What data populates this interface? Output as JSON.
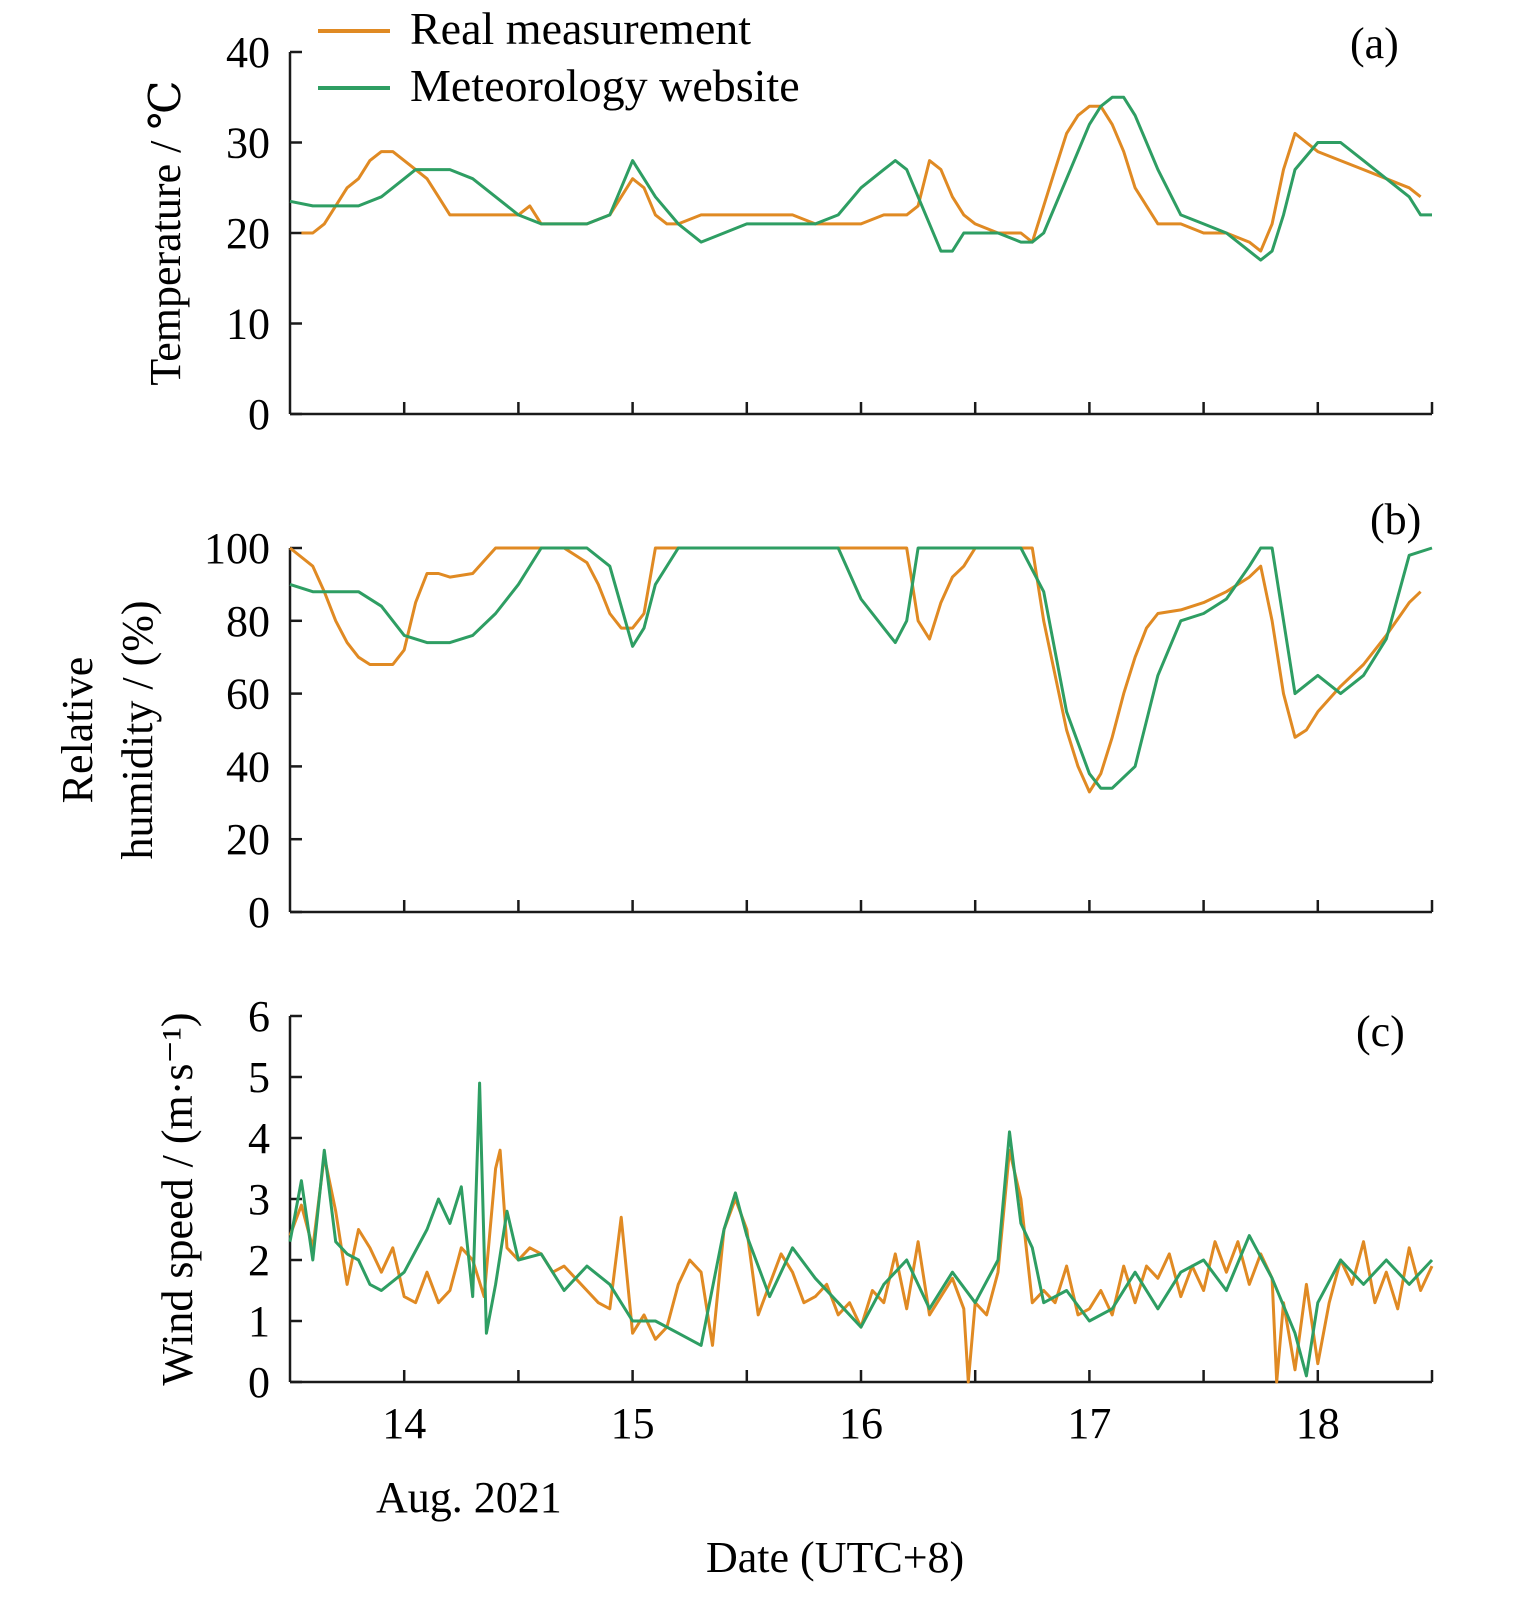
{
  "legend": {
    "real": "Real measurement",
    "website": "Meteorology website"
  },
  "colors": {
    "real": "#e08a23",
    "website": "#2e9e63",
    "axis": "#1a1a1a"
  },
  "x_axis": {
    "tick_values": [
      14,
      15,
      16,
      17,
      18
    ],
    "tick_labels": [
      "14",
      "15",
      "16",
      "17",
      "18"
    ],
    "sub_label": "Aug. 2021",
    "label": "Date (UTC+8)",
    "range": [
      13.5,
      18.5
    ]
  },
  "chart_data": [
    {
      "type": "line",
      "panel": "(a)",
      "ylabel": "Temperature / ℃",
      "ylim": [
        0,
        40
      ],
      "yticks": [
        0,
        10,
        20,
        30,
        40
      ],
      "series": [
        {
          "name": "Real measurement",
          "x": [
            13.55,
            13.6,
            13.65,
            13.7,
            13.75,
            13.8,
            13.85,
            13.9,
            13.95,
            14.0,
            14.05,
            14.1,
            14.15,
            14.2,
            14.3,
            14.4,
            14.5,
            14.55,
            14.6,
            14.7,
            14.8,
            14.9,
            14.95,
            15.0,
            15.05,
            15.1,
            15.15,
            15.2,
            15.3,
            15.4,
            15.5,
            15.6,
            15.7,
            15.8,
            15.9,
            16.0,
            16.1,
            16.2,
            16.25,
            16.3,
            16.35,
            16.4,
            16.45,
            16.5,
            16.6,
            16.7,
            16.75,
            16.8,
            16.85,
            16.9,
            16.95,
            17.0,
            17.05,
            17.1,
            17.15,
            17.2,
            17.25,
            17.3,
            17.4,
            17.5,
            17.6,
            17.7,
            17.75,
            17.8,
            17.85,
            17.9,
            17.95,
            18.0,
            18.1,
            18.2,
            18.3,
            18.4,
            18.45
          ],
          "y": [
            20,
            20,
            21,
            23,
            25,
            26,
            28,
            29,
            29,
            28,
            27,
            26,
            24,
            22,
            22,
            22,
            22,
            23,
            21,
            21,
            21,
            22,
            24,
            26,
            25,
            22,
            21,
            21,
            22,
            22,
            22,
            22,
            22,
            21,
            21,
            21,
            22,
            22,
            23,
            28,
            27,
            24,
            22,
            21,
            20,
            20,
            19,
            23,
            27,
            31,
            33,
            34,
            34,
            32,
            29,
            25,
            23,
            21,
            21,
            20,
            20,
            19,
            18,
            21,
            27,
            31,
            30,
            29,
            28,
            27,
            26,
            25,
            24
          ]
        },
        {
          "name": "Meteorology website",
          "x": [
            13.5,
            13.6,
            13.7,
            13.8,
            13.9,
            14.0,
            14.05,
            14.1,
            14.2,
            14.3,
            14.4,
            14.5,
            14.6,
            14.7,
            14.8,
            14.9,
            14.95,
            15.0,
            15.05,
            15.1,
            15.2,
            15.3,
            15.4,
            15.5,
            15.6,
            15.7,
            15.8,
            15.9,
            16.0,
            16.1,
            16.15,
            16.2,
            16.25,
            16.3,
            16.35,
            16.4,
            16.45,
            16.5,
            16.6,
            16.7,
            16.75,
            16.8,
            16.9,
            17.0,
            17.05,
            17.1,
            17.15,
            17.2,
            17.3,
            17.4,
            17.5,
            17.6,
            17.65,
            17.7,
            17.75,
            17.8,
            17.85,
            17.9,
            18.0,
            18.1,
            18.2,
            18.3,
            18.4,
            18.45,
            18.5
          ],
          "y": [
            23.5,
            23,
            23,
            23,
            24,
            26,
            27,
            27,
            27,
            26,
            24,
            22,
            21,
            21,
            21,
            22,
            25,
            28,
            26,
            24,
            21,
            19,
            20,
            21,
            21,
            21,
            21,
            22,
            25,
            27,
            28,
            27,
            24,
            21,
            18,
            18,
            20,
            20,
            20,
            19,
            19,
            20,
            26,
            32,
            34,
            35,
            35,
            33,
            27,
            22,
            21,
            20,
            19,
            18,
            17,
            18,
            22,
            27,
            30,
            30,
            28,
            26,
            24,
            22,
            22
          ]
        }
      ]
    },
    {
      "type": "line",
      "panel": "(b)",
      "ylabel": "Relative humidity / (%)",
      "ylabel_lines": [
        "Relative",
        "humidity / (%)"
      ],
      "ylim": [
        0,
        100
      ],
      "yticks": [
        0,
        20,
        40,
        60,
        80,
        100
      ],
      "series": [
        {
          "name": "Real measurement",
          "x": [
            13.5,
            13.6,
            13.65,
            13.7,
            13.75,
            13.8,
            13.85,
            13.9,
            13.95,
            14.0,
            14.05,
            14.1,
            14.15,
            14.2,
            14.3,
            14.4,
            14.45,
            14.5,
            14.6,
            14.7,
            14.8,
            14.85,
            14.9,
            14.95,
            15.0,
            15.05,
            15.1,
            15.2,
            15.3,
            15.5,
            15.7,
            15.9,
            16.1,
            16.2,
            16.25,
            16.3,
            16.35,
            16.4,
            16.45,
            16.5,
            16.6,
            16.7,
            16.75,
            16.8,
            16.9,
            16.95,
            17.0,
            17.05,
            17.1,
            17.15,
            17.2,
            17.25,
            17.3,
            17.4,
            17.5,
            17.6,
            17.7,
            17.75,
            17.8,
            17.85,
            17.9,
            17.95,
            18.0,
            18.1,
            18.2,
            18.3,
            18.4,
            18.45
          ],
          "y": [
            100,
            95,
            88,
            80,
            74,
            70,
            68,
            68,
            68,
            72,
            85,
            93,
            93,
            92,
            93,
            100,
            100,
            100,
            100,
            100,
            96,
            90,
            82,
            78,
            78,
            82,
            100,
            100,
            100,
            100,
            100,
            100,
            100,
            100,
            80,
            75,
            85,
            92,
            95,
            100,
            100,
            100,
            100,
            80,
            50,
            40,
            33,
            38,
            48,
            60,
            70,
            78,
            82,
            83,
            85,
            88,
            92,
            95,
            80,
            60,
            48,
            50,
            55,
            62,
            68,
            76,
            85,
            88
          ]
        },
        {
          "name": "Meteorology website",
          "x": [
            13.5,
            13.6,
            13.7,
            13.8,
            13.9,
            14.0,
            14.1,
            14.2,
            14.3,
            14.4,
            14.5,
            14.6,
            14.7,
            14.8,
            14.9,
            14.95,
            15.0,
            15.05,
            15.1,
            15.2,
            15.3,
            15.5,
            15.7,
            15.9,
            16.0,
            16.1,
            16.15,
            16.2,
            16.25,
            16.3,
            16.5,
            16.7,
            16.8,
            16.9,
            17.0,
            17.05,
            17.1,
            17.2,
            17.3,
            17.4,
            17.5,
            17.6,
            17.7,
            17.75,
            17.8,
            17.9,
            18.0,
            18.1,
            18.2,
            18.3,
            18.4,
            18.5
          ],
          "y": [
            90,
            88,
            88,
            88,
            84,
            76,
            74,
            74,
            76,
            82,
            90,
            100,
            100,
            100,
            95,
            84,
            73,
            78,
            90,
            100,
            100,
            100,
            100,
            100,
            86,
            78,
            74,
            80,
            100,
            100,
            100,
            100,
            88,
            55,
            38,
            34,
            34,
            40,
            65,
            80,
            82,
            86,
            95,
            100,
            100,
            60,
            65,
            60,
            65,
            75,
            98,
            100
          ]
        }
      ]
    },
    {
      "type": "line",
      "panel": "(c)",
      "ylabel": "Wind speed / (m·s⁻¹)",
      "ylim": [
        0,
        6
      ],
      "yticks": [
        0,
        1,
        2,
        3,
        4,
        5,
        6
      ],
      "series": [
        {
          "name": "Real measurement",
          "x": [
            13.5,
            13.55,
            13.6,
            13.65,
            13.7,
            13.75,
            13.8,
            13.85,
            13.9,
            13.95,
            14.0,
            14.05,
            14.1,
            14.15,
            14.2,
            14.25,
            14.3,
            14.35,
            14.4,
            14.42,
            14.45,
            14.5,
            14.55,
            14.6,
            14.65,
            14.7,
            14.75,
            14.8,
            14.85,
            14.9,
            14.95,
            15.0,
            15.05,
            15.1,
            15.15,
            15.2,
            15.25,
            15.3,
            15.35,
            15.4,
            15.45,
            15.5,
            15.55,
            15.6,
            15.65,
            15.7,
            15.75,
            15.8,
            15.85,
            15.9,
            15.95,
            16.0,
            16.05,
            16.1,
            16.15,
            16.2,
            16.25,
            16.3,
            16.35,
            16.4,
            16.45,
            16.47,
            16.5,
            16.55,
            16.6,
            16.65,
            16.7,
            16.75,
            16.8,
            16.85,
            16.9,
            16.95,
            17.0,
            17.05,
            17.1,
            17.15,
            17.2,
            17.25,
            17.3,
            17.35,
            17.4,
            17.45,
            17.5,
            17.55,
            17.6,
            17.65,
            17.7,
            17.75,
            17.8,
            17.82,
            17.85,
            17.9,
            17.95,
            18.0,
            18.05,
            18.1,
            18.15,
            18.2,
            18.25,
            18.3,
            18.35,
            18.4,
            18.45,
            18.5
          ],
          "y": [
            2.4,
            2.9,
            2.2,
            3.7,
            2.8,
            1.6,
            2.5,
            2.2,
            1.8,
            2.2,
            1.4,
            1.3,
            1.8,
            1.3,
            1.5,
            2.2,
            2.0,
            1.4,
            3.5,
            3.8,
            2.2,
            2.0,
            2.2,
            2.1,
            1.8,
            1.9,
            1.7,
            1.5,
            1.3,
            1.2,
            2.7,
            0.8,
            1.1,
            0.7,
            0.9,
            1.6,
            2.0,
            1.8,
            0.6,
            2.5,
            3.0,
            2.5,
            1.1,
            1.6,
            2.1,
            1.8,
            1.3,
            1.4,
            1.6,
            1.1,
            1.3,
            0.9,
            1.5,
            1.3,
            2.1,
            1.2,
            2.3,
            1.1,
            1.4,
            1.7,
            1.2,
            0.0,
            1.3,
            1.1,
            1.8,
            3.8,
            3.0,
            1.3,
            1.5,
            1.3,
            1.9,
            1.1,
            1.2,
            1.5,
            1.1,
            1.9,
            1.3,
            1.9,
            1.7,
            2.1,
            1.4,
            1.9,
            1.5,
            2.3,
            1.8,
            2.3,
            1.6,
            2.1,
            1.7,
            0.0,
            1.3,
            0.2,
            1.6,
            0.3,
            1.3,
            2.0,
            1.6,
            2.3,
            1.3,
            1.8,
            1.2,
            2.2,
            1.5,
            1.9
          ]
        },
        {
          "name": "Meteorology website",
          "x": [
            13.5,
            13.55,
            13.6,
            13.65,
            13.7,
            13.75,
            13.8,
            13.85,
            13.9,
            14.0,
            14.1,
            14.15,
            14.2,
            14.25,
            14.3,
            14.33,
            14.36,
            14.4,
            14.45,
            14.5,
            14.6,
            14.7,
            14.8,
            14.9,
            15.0,
            15.1,
            15.2,
            15.3,
            15.4,
            15.45,
            15.5,
            15.6,
            15.7,
            15.8,
            15.9,
            16.0,
            16.1,
            16.2,
            16.3,
            16.4,
            16.5,
            16.6,
            16.65,
            16.7,
            16.75,
            16.8,
            16.9,
            17.0,
            17.1,
            17.2,
            17.3,
            17.4,
            17.5,
            17.6,
            17.7,
            17.8,
            17.9,
            17.95,
            18.0,
            18.1,
            18.2,
            18.3,
            18.4,
            18.5
          ],
          "y": [
            2.3,
            3.3,
            2.0,
            3.8,
            2.3,
            2.1,
            2.0,
            1.6,
            1.5,
            1.8,
            2.5,
            3.0,
            2.6,
            3.2,
            1.4,
            4.9,
            0.8,
            1.6,
            2.8,
            2.0,
            2.1,
            1.5,
            1.9,
            1.6,
            1.0,
            1.0,
            0.8,
            0.6,
            2.5,
            3.1,
            2.4,
            1.4,
            2.2,
            1.7,
            1.3,
            0.9,
            1.6,
            2.0,
            1.2,
            1.8,
            1.3,
            2.0,
            4.1,
            2.6,
            2.2,
            1.3,
            1.5,
            1.0,
            1.2,
            1.8,
            1.2,
            1.8,
            2.0,
            1.5,
            2.4,
            1.7,
            0.8,
            0.1,
            1.3,
            2.0,
            1.6,
            2.0,
            1.6,
            2.0
          ]
        }
      ]
    }
  ]
}
